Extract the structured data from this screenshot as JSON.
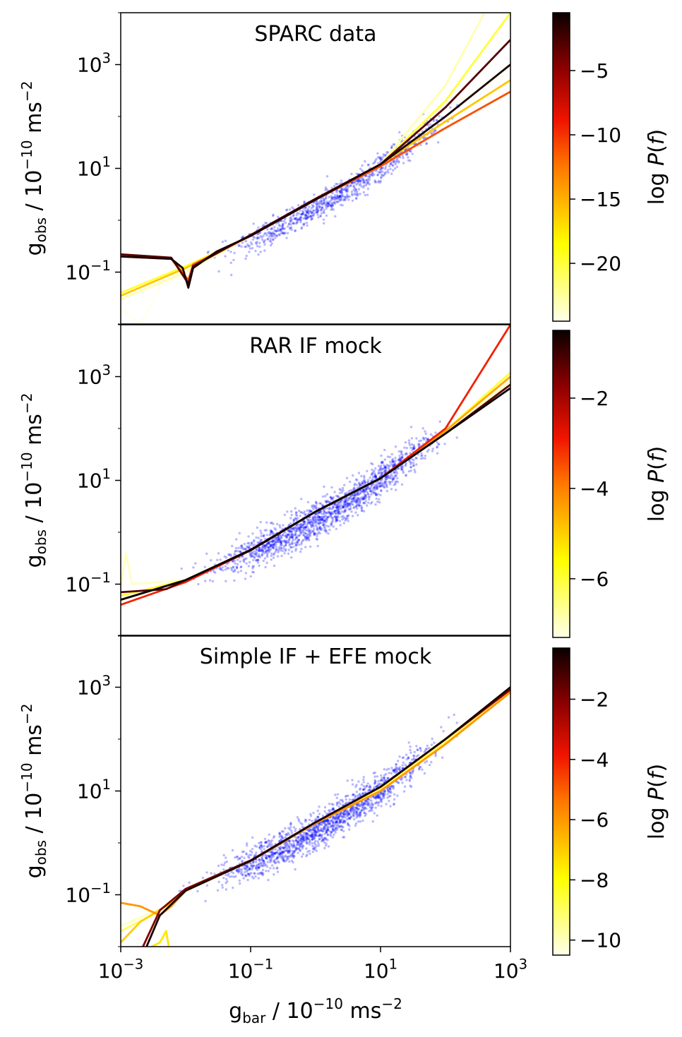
{
  "figure": {
    "xlabel": "g_bar / 10^-10 ms^-2",
    "ylabel": "g_obs / 10^-10 ms^-2",
    "colorbar_label": "log P(f)"
  },
  "chart_data": [
    {
      "type": "scatter",
      "title": "SPARC data",
      "xscale": "log",
      "yscale": "log",
      "xlim": [
        0.001,
        1000
      ],
      "ylim": [
        0.01,
        10000
      ],
      "xticks": [
        "10^-3",
        "10^-1",
        "10^1",
        "10^3"
      ],
      "yticks": [
        "10^-1",
        "10^1",
        "10^3"
      ],
      "scatter": {
        "color": "#0000ff",
        "x_range": [
          0.01,
          200
        ],
        "n_points": 900
      },
      "curves": [
        {
          "logP": -1.0,
          "points": [
            [
              0.001,
              0.2
            ],
            [
              0.006,
              0.18
            ],
            [
              0.009,
              0.12
            ],
            [
              0.011,
              0.05
            ],
            [
              0.013,
              0.12
            ],
            [
              0.03,
              0.25
            ],
            [
              0.1,
              0.5
            ],
            [
              1,
              2.5
            ],
            [
              10,
              12
            ],
            [
              100,
              100
            ],
            [
              1000,
              1000
            ]
          ]
        },
        {
          "logP": -3.0,
          "points": [
            [
              0.001,
              0.22
            ],
            [
              0.006,
              0.19
            ],
            [
              0.011,
              0.06
            ],
            [
              0.013,
              0.13
            ],
            [
              0.1,
              0.52
            ],
            [
              1,
              2.6
            ],
            [
              10,
              12
            ],
            [
              100,
              150
            ],
            [
              1000,
              3000
            ]
          ]
        },
        {
          "logP": -11.0,
          "points": [
            [
              0.001,
              0.2
            ],
            [
              0.006,
              0.18
            ],
            [
              0.011,
              0.07
            ],
            [
              0.013,
              0.14
            ],
            [
              0.1,
              0.5
            ],
            [
              1,
              2.5
            ],
            [
              10,
              11
            ],
            [
              100,
              60
            ],
            [
              1000,
              300
            ]
          ]
        },
        {
          "logP": -16.0,
          "points": [
            [
              0.001,
              0.035
            ],
            [
              0.01,
              0.12
            ],
            [
              0.1,
              0.5
            ],
            [
              1,
              2.5
            ],
            [
              10,
              12
            ],
            [
              100,
              80
            ],
            [
              1000,
              500
            ]
          ]
        },
        {
          "logP": -20.0,
          "points": [
            [
              0.001,
              0.04
            ],
            [
              0.01,
              0.13
            ],
            [
              0.1,
              0.5
            ],
            [
              1,
              2.5
            ],
            [
              10,
              12
            ],
            [
              100,
              200
            ],
            [
              1000,
              10000
            ]
          ]
        },
        {
          "logP": -23.0,
          "points": [
            [
              0.001,
              0.03
            ],
            [
              0.01,
              0.1
            ],
            [
              0.1,
              0.5
            ],
            [
              1,
              2.5
            ],
            [
              10,
              12
            ],
            [
              100,
              400
            ],
            [
              400,
              10000
            ]
          ]
        },
        {
          "logP": -24.5,
          "points": [
            [
              0.001,
              0.02
            ],
            [
              0.002,
              0.01
            ],
            [
              0.004,
              0.05
            ],
            [
              0.01,
              0.1
            ],
            [
              0.1,
              0.5
            ],
            [
              1,
              2.5
            ],
            [
              10,
              12
            ],
            [
              100,
              150
            ],
            [
              1000,
              700
            ]
          ]
        }
      ],
      "colorbar": {
        "min": -24.5,
        "max": -0.5,
        "ticks": [
          -5,
          -10,
          -15,
          -20
        ],
        "tick_labels": [
          "−5",
          "−10",
          "−15",
          "−20"
        ],
        "label": "log P(f)"
      }
    },
    {
      "type": "scatter",
      "title": "RAR IF mock",
      "xscale": "log",
      "yscale": "log",
      "xlim": [
        0.001,
        1000
      ],
      "ylim": [
        0.01,
        10000
      ],
      "xticks": [
        "10^-3",
        "10^-1",
        "10^1",
        "10^3"
      ],
      "yticks": [
        "10^-1",
        "10^1",
        "10^3"
      ],
      "scatter": {
        "color": "#0000ff",
        "x_range": [
          0.008,
          150
        ],
        "n_points": 1600
      },
      "curves": [
        {
          "logP": -0.5,
          "points": [
            [
              0.001,
              0.05
            ],
            [
              0.01,
              0.12
            ],
            [
              0.1,
              0.45
            ],
            [
              1,
              2.5
            ],
            [
              10,
              11
            ],
            [
              100,
              80
            ],
            [
              1000,
              600
            ]
          ]
        },
        {
          "logP": -1.2,
          "points": [
            [
              0.001,
              0.07
            ],
            [
              0.005,
              0.08
            ],
            [
              0.01,
              0.12
            ],
            [
              0.1,
              0.46
            ],
            [
              1,
              2.5
            ],
            [
              10,
              11
            ],
            [
              100,
              80
            ],
            [
              1000,
              700
            ]
          ]
        },
        {
          "logP": -3.0,
          "points": [
            [
              0.001,
              0.04
            ],
            [
              0.01,
              0.11
            ],
            [
              0.1,
              0.45
            ],
            [
              1,
              2.5
            ],
            [
              10,
              11
            ],
            [
              100,
              100
            ],
            [
              1000,
              10000
            ]
          ]
        },
        {
          "logP": -4.5,
          "points": [
            [
              0.001,
              0.05
            ],
            [
              0.01,
              0.12
            ],
            [
              0.1,
              0.45
            ],
            [
              1,
              2.5
            ],
            [
              10,
              11
            ],
            [
              100,
              90
            ],
            [
              1000,
              1000
            ]
          ]
        },
        {
          "logP": -6.0,
          "points": [
            [
              0.001,
              0.06
            ],
            [
              0.01,
              0.12
            ],
            [
              0.1,
              0.45
            ],
            [
              1,
              2.5
            ],
            [
              10,
              11
            ],
            [
              100,
              90
            ],
            [
              1000,
              1200
            ]
          ]
        },
        {
          "logP": -7.0,
          "points": [
            [
              0.001,
              0.08
            ],
            [
              0.0012,
              0.4
            ],
            [
              0.0015,
              0.1
            ],
            [
              0.01,
              0.12
            ],
            [
              0.1,
              0.45
            ],
            [
              1,
              2.5
            ],
            [
              10,
              11
            ],
            [
              100,
              80
            ],
            [
              1000,
              800
            ]
          ]
        }
      ],
      "colorbar": {
        "min": -7.3,
        "max": -0.5,
        "ticks": [
          -2,
          -4,
          -6
        ],
        "tick_labels": [
          "−2",
          "−4",
          "−6"
        ],
        "label": "log P(f)"
      }
    },
    {
      "type": "scatter",
      "title": "Simple IF + EFE mock",
      "xscale": "log",
      "yscale": "log",
      "xlim": [
        0.001,
        1000
      ],
      "ylim": [
        0.01,
        10000
      ],
      "xticks": [
        "10^-3",
        "10^-1",
        "10^1",
        "10^3"
      ],
      "yticks": [
        "10^-1",
        "10^1",
        "10^3"
      ],
      "scatter": {
        "color": "#0000ff",
        "x_range": [
          0.008,
          150
        ],
        "n_points": 1600
      },
      "curves": [
        {
          "logP": -0.5,
          "points": [
            [
              0.0025,
              0.01
            ],
            [
              0.004,
              0.04
            ],
            [
              0.01,
              0.12
            ],
            [
              0.1,
              0.45
            ],
            [
              1,
              2.5
            ],
            [
              10,
              12
            ],
            [
              100,
              100
            ],
            [
              1000,
              1000
            ]
          ]
        },
        {
          "logP": -2.0,
          "points": [
            [
              0.0022,
              0.01
            ],
            [
              0.004,
              0.05
            ],
            [
              0.01,
              0.13
            ],
            [
              0.1,
              0.46
            ],
            [
              1,
              2.5
            ],
            [
              10,
              12
            ],
            [
              100,
              100
            ],
            [
              1000,
              900
            ]
          ]
        },
        {
          "logP": -6.0,
          "points": [
            [
              0.001,
              0.07
            ],
            [
              0.002,
              0.06
            ],
            [
              0.004,
              0.04
            ],
            [
              0.006,
              0.06
            ],
            [
              0.01,
              0.12
            ],
            [
              0.1,
              0.45
            ],
            [
              1,
              2.4
            ],
            [
              10,
              10
            ],
            [
              100,
              80
            ],
            [
              1000,
              800
            ]
          ]
        },
        {
          "logP": -7.0,
          "points": [
            [
              0.001,
              0.012
            ],
            [
              0.002,
              0.03
            ],
            [
              0.006,
              0.07
            ],
            [
              0.01,
              0.12
            ],
            [
              0.1,
              0.45
            ],
            [
              1,
              2.4
            ],
            [
              10,
              10
            ],
            [
              100,
              80
            ],
            [
              1000,
              800
            ]
          ]
        },
        {
          "logP": -7.5,
          "points": [
            [
              0.003,
              0.01
            ],
            [
              0.004,
              0.012
            ],
            [
              0.005,
              0.02
            ],
            [
              0.0055,
              0.01
            ]
          ]
        },
        {
          "logP": -9.0,
          "points": [
            [
              0.001,
              0.02
            ],
            [
              0.003,
              0.04
            ],
            [
              0.006,
              0.07
            ],
            [
              0.01,
              0.12
            ],
            [
              0.1,
              0.45
            ],
            [
              1,
              2.5
            ],
            [
              10,
              11
            ],
            [
              100,
              90
            ],
            [
              1000,
              900
            ]
          ]
        },
        {
          "logP": -10.0,
          "points": [
            [
              0.001,
              0.025
            ],
            [
              0.005,
              0.06
            ],
            [
              0.01,
              0.12
            ],
            [
              0.1,
              0.45
            ],
            [
              1,
              2.5
            ],
            [
              10,
              11
            ],
            [
              100,
              90
            ],
            [
              1000,
              900
            ]
          ]
        }
      ],
      "colorbar": {
        "min": -10.5,
        "max": -0.3,
        "ticks": [
          -2,
          -4,
          -6,
          -8,
          -10
        ],
        "tick_labels": [
          "−2",
          "−4",
          "−6",
          "−8",
          "−10"
        ],
        "label": "log P(f)"
      }
    }
  ]
}
